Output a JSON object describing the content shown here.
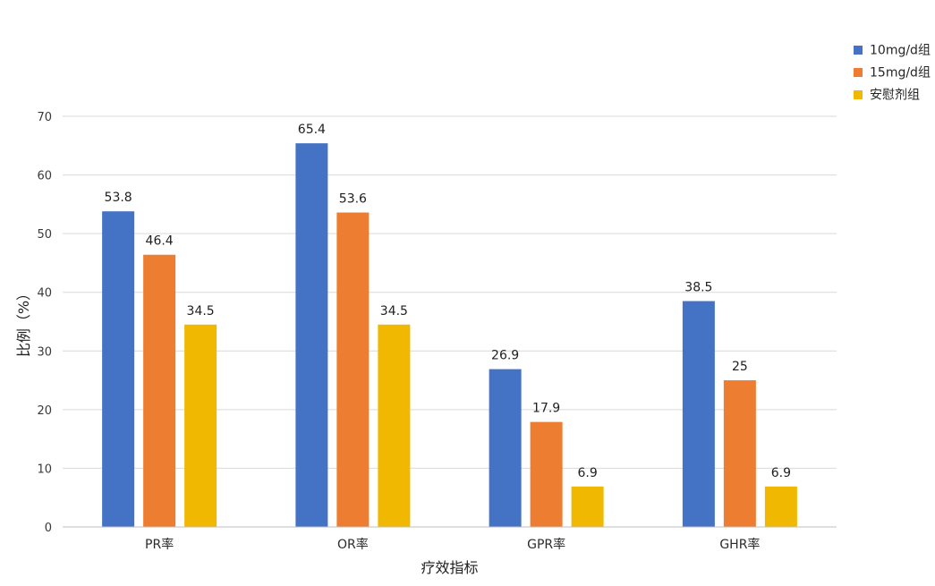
{
  "chart_data": {
    "type": "bar",
    "title": "",
    "xlabel": "疗效指标",
    "ylabel": "比例（%）",
    "ylim": [
      0,
      70
    ],
    "yticks": [
      0,
      10,
      20,
      30,
      40,
      50,
      60,
      70
    ],
    "grid": true,
    "legend_position": "top-right",
    "categories": [
      "PR率",
      "OR率",
      "GPR率",
      "GHR率"
    ],
    "series": [
      {
        "name": "10mg/d组",
        "color": "#4472C4",
        "values": [
          53.8,
          65.4,
          26.9,
          38.5
        ]
      },
      {
        "name": "15mg/d组",
        "color": "#ED7D31",
        "values": [
          46.4,
          53.6,
          17.9,
          25
        ]
      },
      {
        "name": "安慰剂组",
        "color": "#F0B800",
        "values": [
          34.5,
          34.5,
          6.9,
          6.9
        ]
      }
    ]
  }
}
